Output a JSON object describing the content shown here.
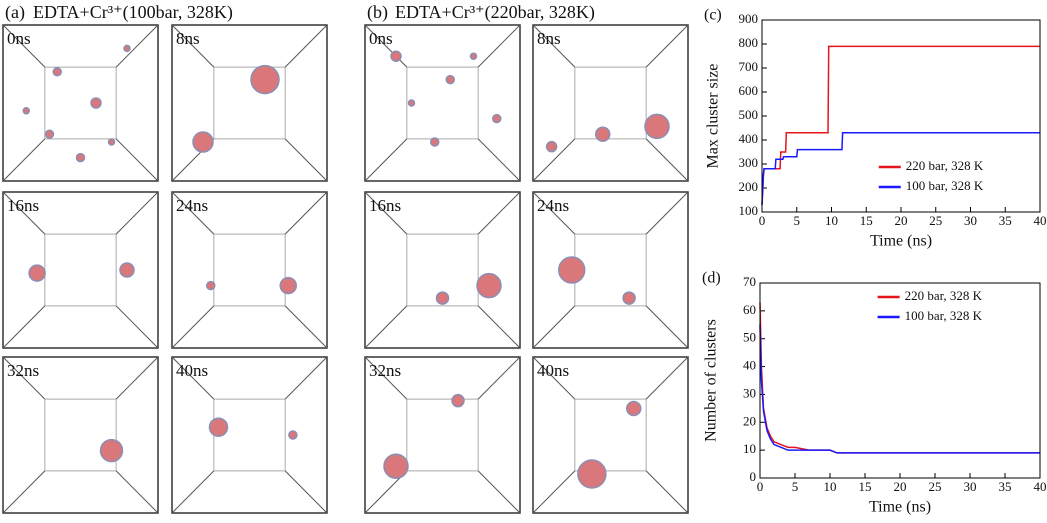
{
  "panels": [
    {
      "label": "(a)",
      "title": "EDTA+Cr³⁺(100bar, 328K)",
      "frames": [
        "0ns",
        "8ns",
        "16ns",
        "24ns",
        "32ns",
        "40ns"
      ]
    },
    {
      "label": "(b)",
      "title": "EDTA+Cr³⁺(220bar, 328K)",
      "frames": [
        "0ns",
        "8ns",
        "16ns",
        "24ns",
        "32ns",
        "40ns"
      ]
    }
  ],
  "chart_data": [
    {
      "type": "line",
      "panel_label": "(c)",
      "x_label": "Time (ns)",
      "y_label": "Max cluster size",
      "xlim": [
        0,
        40
      ],
      "xticks": [
        0,
        5,
        10,
        15,
        20,
        25,
        30,
        35,
        40
      ],
      "ylim": [
        100,
        900
      ],
      "yticks": [
        100,
        200,
        300,
        400,
        500,
        600,
        700,
        800,
        900
      ],
      "legend": "lower right",
      "series": [
        {
          "name": "220 bar, 328 K",
          "color": "#e8141b",
          "x": [
            0,
            0.2,
            0.3,
            2.6,
            2.7,
            3.4,
            3.5,
            9.5,
            9.6,
            40
          ],
          "values": [
            130,
            260,
            280,
            280,
            350,
            350,
            430,
            430,
            790,
            790
          ]
        },
        {
          "name": "100 bar, 328 K",
          "color": "#1a1aff",
          "x": [
            0,
            0.2,
            0.3,
            1.9,
            2,
            3,
            3.1,
            5,
            5.1,
            11.5,
            11.6,
            40
          ],
          "values": [
            130,
            250,
            280,
            280,
            320,
            320,
            330,
            330,
            360,
            360,
            430,
            430
          ]
        }
      ]
    },
    {
      "type": "line",
      "panel_label": "(d)",
      "x_label": "Time (ns)",
      "y_label": "Number of clusters",
      "xlim": [
        0,
        40
      ],
      "xticks": [
        0,
        5,
        10,
        15,
        20,
        25,
        30,
        35,
        40
      ],
      "ylim": [
        0,
        70
      ],
      "yticks": [
        0,
        10,
        20,
        30,
        40,
        50,
        60,
        70
      ],
      "legend": "upper right",
      "series": [
        {
          "name": "220 bar, 328 K",
          "color": "#e8141b",
          "x": [
            0,
            0.2,
            0.5,
            1,
            1.5,
            2,
            3,
            4,
            5,
            7,
            10,
            11,
            15,
            20,
            25,
            30,
            35,
            40
          ],
          "values": [
            63,
            40,
            25,
            18,
            15,
            13,
            12,
            11,
            11,
            10,
            10,
            9,
            9,
            9,
            9,
            9,
            9,
            9
          ]
        },
        {
          "name": "100 bar, 328 K",
          "color": "#1a1aff",
          "x": [
            0,
            0.2,
            0.5,
            1,
            1.5,
            2,
            3,
            4,
            5,
            7,
            10,
            11,
            15,
            20,
            25,
            30,
            35,
            40
          ],
          "values": [
            55,
            35,
            24,
            17,
            14,
            12,
            11,
            10,
            10,
            10,
            10,
            9,
            9,
            9,
            9,
            9,
            9,
            9
          ]
        }
      ]
    }
  ]
}
